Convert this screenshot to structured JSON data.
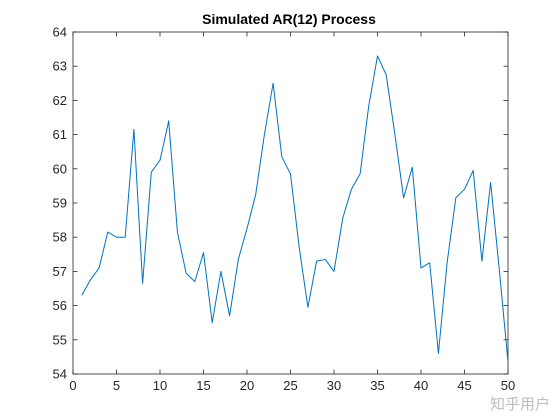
{
  "watermark": "知乎用户",
  "colors": {
    "series": "#0072bd",
    "axis": "#262626",
    "background": "#ffffff"
  },
  "chart_data": {
    "type": "line",
    "title": "Simulated AR(12) Process",
    "xlabel": "",
    "ylabel": "",
    "xlim": [
      0,
      50
    ],
    "ylim": [
      54,
      64
    ],
    "xticks": [
      0,
      5,
      10,
      15,
      20,
      25,
      30,
      35,
      40,
      45,
      50
    ],
    "yticks": [
      54,
      55,
      56,
      57,
      58,
      59,
      60,
      61,
      62,
      63,
      64
    ],
    "grid": false,
    "box": true,
    "series": [
      {
        "x": [
          1,
          2,
          3,
          4,
          5,
          6,
          7,
          8,
          9,
          10,
          11,
          12,
          13,
          14,
          15,
          16,
          17,
          18,
          19,
          20,
          21,
          22,
          23,
          24,
          25,
          26,
          27,
          28,
          29,
          30,
          31,
          32,
          33,
          34,
          35,
          36,
          37,
          38,
          39,
          40,
          41,
          42,
          43,
          44,
          45,
          46,
          47,
          48,
          49,
          50
        ],
        "values": [
          56.3,
          56.75,
          57.1,
          58.15,
          58.0,
          58.0,
          61.15,
          56.65,
          59.9,
          60.25,
          61.4,
          58.15,
          56.95,
          56.7,
          57.55,
          55.5,
          57.0,
          55.7,
          57.35,
          58.25,
          59.25,
          61.0,
          62.5,
          60.35,
          59.85,
          57.7,
          55.95,
          57.3,
          57.35,
          57.0,
          58.55,
          59.4,
          59.85,
          61.85,
          63.3,
          62.75,
          61.0,
          59.15,
          60.05,
          57.1,
          57.25,
          54.6,
          57.25,
          59.15,
          59.4,
          59.95,
          57.3,
          59.6,
          57.05,
          54.35
        ]
      }
    ]
  }
}
